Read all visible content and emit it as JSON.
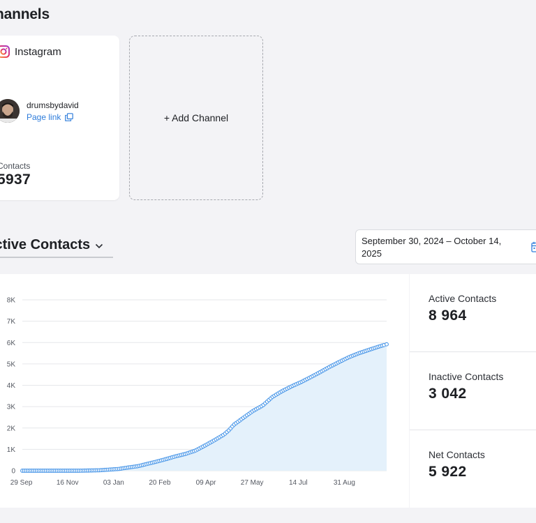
{
  "section": {
    "title": "Channels"
  },
  "channel": {
    "platform": "Instagram",
    "handle": "drumsbydavid",
    "page_link": "Page link",
    "contacts_label": "Contacts",
    "contacts_value": "5937"
  },
  "add_channel": {
    "label": "+ Add Channel"
  },
  "metric": {
    "label": "Active Contacts"
  },
  "date_range": {
    "value": "September 30, 2024 – October 14, 2025"
  },
  "stats": [
    {
      "label": "Active Contacts",
      "value": "8 964"
    },
    {
      "label": "Inactive Contacts",
      "value": "3 042"
    },
    {
      "label": "Net Contacts",
      "value": "5 922"
    }
  ],
  "icons": {
    "instagram": "instagram-icon",
    "copy": "copy-icon",
    "chevron": "chevron-down-icon",
    "calendar": "calendar-icon"
  },
  "colors": {
    "line": "#4a97e8",
    "area": "#e4f1fb",
    "link": "#2f7ddb"
  },
  "chart_data": {
    "type": "area",
    "y_ticks": [
      "0",
      "1K",
      "2K",
      "3K",
      "4K",
      "5K",
      "6K",
      "7K",
      "8K"
    ],
    "x_ticks": [
      "29 Sep",
      "16 Nov",
      "03 Jan",
      "20 Feb",
      "09 Apr",
      "27 May",
      "14 Jul",
      "31 Aug"
    ],
    "ylim": [
      0,
      8000
    ],
    "xlim": [
      "2024-09-30",
      "2025-10-14"
    ],
    "grid": true,
    "series": [
      {
        "x": [
          "2024-09-30",
          "2024-10-20",
          "2024-11-09",
          "2024-11-29",
          "2024-12-19",
          "2025-01-08",
          "2025-01-18",
          "2025-01-28",
          "2025-02-07",
          "2025-02-17",
          "2025-02-27",
          "2025-03-09",
          "2025-03-19",
          "2025-03-29",
          "2025-04-08",
          "2025-04-18",
          "2025-04-28",
          "2025-05-03",
          "2025-05-08",
          "2025-05-18",
          "2025-05-28",
          "2025-06-07",
          "2025-06-12",
          "2025-06-17",
          "2025-06-27",
          "2025-07-07",
          "2025-07-17",
          "2025-07-27",
          "2025-08-06",
          "2025-08-16",
          "2025-08-26",
          "2025-09-05",
          "2025-09-15",
          "2025-09-25",
          "2025-10-05",
          "2025-10-14"
        ],
        "values": [
          0,
          0,
          0,
          0,
          20,
          80,
          150,
          210,
          320,
          430,
          550,
          680,
          790,
          940,
          1180,
          1430,
          1700,
          1900,
          2150,
          2480,
          2800,
          3050,
          3250,
          3450,
          3720,
          3950,
          4150,
          4380,
          4620,
          4870,
          5100,
          5320,
          5500,
          5650,
          5800,
          5920
        ]
      }
    ]
  }
}
